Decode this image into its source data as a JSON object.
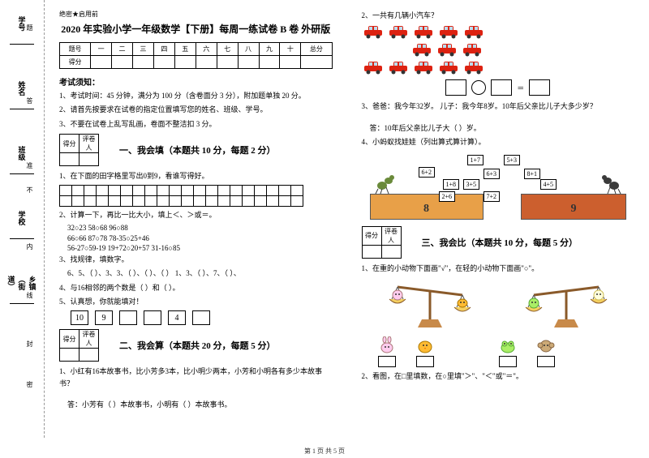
{
  "sidebar": {
    "items": [
      {
        "label": "学号"
      },
      {
        "label": "姓名"
      },
      {
        "label": "班级"
      },
      {
        "label": "学校"
      },
      {
        "label": "乡镇（街道）"
      }
    ],
    "notes": [
      "题",
      "答",
      "准",
      "不",
      "内",
      "线",
      "封",
      "密"
    ]
  },
  "header": {
    "confidential": "绝密★启用前",
    "title": "2020 年实验小学一年级数学【下册】每周一练试卷 B 卷 外研版"
  },
  "score_headers": [
    "题号",
    "一",
    "二",
    "三",
    "四",
    "五",
    "六",
    "七",
    "八",
    "九",
    "十",
    "总分"
  ],
  "score_row_label": "得分",
  "notice": {
    "heading": "考试须知：",
    "items": [
      "1、考试时间：45 分钟，满分为 100 分（含卷面分 3 分），附加题单独 20 分。",
      "2、请首先按要求在试卷的指定位置填写您的姓名、班级、学号。",
      "3、不要在试卷上乱写乱画，卷面不整洁扣 3 分。"
    ]
  },
  "score_cell": {
    "a": "得分",
    "b": "评卷人"
  },
  "sec1": {
    "title": "一、我会填（本题共 10 分，每题 2 分）",
    "q1": "1、在下面的田字格里写出0到9，看谁写得好。",
    "q2": "2、计算一下，再比一比大小，填上＜、＞或＝。",
    "calc": [
      "32○23        58○68        96○88",
      "66○66        87○78        78-35○25+46",
      "56-27○59-19  19+72○20+57  31-16○85"
    ],
    "q3": "3、找规律，填数字。",
    "q3b": "6、5、（  ）、3、3、（  ）、（  ）、（  ）   1、3、（  ）、7、（  ）、",
    "q4": "4、与16相邻的两个数是（  ）和（  ）。",
    "q5": "5、认真想，你就能填对！",
    "boxes": [
      "10",
      "9",
      "",
      "",
      "4",
      ""
    ]
  },
  "sec2": {
    "title": "二、我会算（本题共 20 分，每题 5 分）",
    "q1": "1、小红有16本故事书，比小芳多3本，比小明少两本，小芳和小明各有多少本故事书？",
    "ans": "答：小芳有（  ）本故事书，小明有（  ）本故事书。"
  },
  "right": {
    "q2": "2、一共有几辆小汽车？",
    "q3": "3、爸爸：我今年32岁。 儿子：我今年8岁。10年后父亲比儿子大多少岁？",
    "q3ans": "答：10年后父亲比儿子大（  ）岁。",
    "q4": "4、小蚂蚁找娃娃（列出算式算计算）。",
    "cards": [
      "1+7",
      "5+3",
      "6+2",
      "6+3",
      "8+1",
      "1+8",
      "4+5",
      "2+6",
      "7+2",
      "3+5"
    ],
    "plat1": "8",
    "plat2": "9"
  },
  "sec3": {
    "title": "三、我会比（本题共 10 分，每题 5 分）",
    "q1": "1、在重的小动物下面画\"√\"，在轻的小动物下面画\"○\"。",
    "q2": "2、看图，在□里填数，在○里填\"＞\"、\"＜\"或\"＝\"。"
  },
  "footer": "第 1 页 共 5 页"
}
